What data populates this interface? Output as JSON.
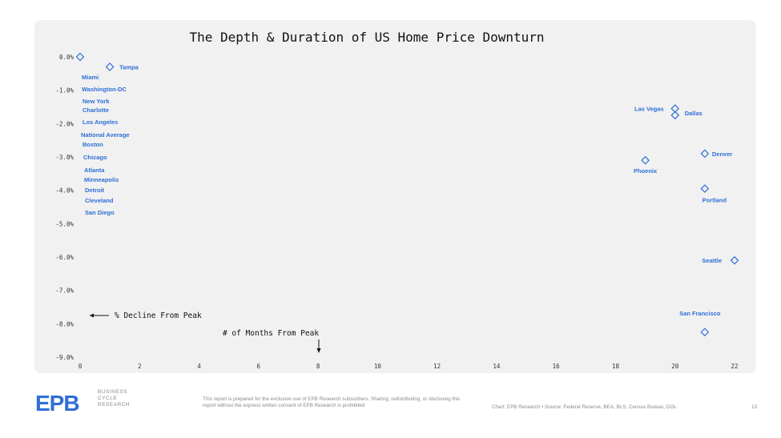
{
  "chart_data": {
    "type": "scatter",
    "title": "The Depth & Duration of US Home Price Downturn",
    "xlim": [
      0,
      22
    ],
    "ylim": [
      -9,
      0
    ],
    "x_ticks": [
      "0",
      "2",
      "4",
      "6",
      "8",
      "10",
      "12",
      "14",
      "16",
      "18",
      "20",
      "22"
    ],
    "y_ticks": [
      "0.0%",
      "-1.0%",
      "-2.0%",
      "-3.0%",
      "-4.0%",
      "-5.0%",
      "-6.0%",
      "-7.0%",
      "-8.0%",
      "-9.0%"
    ],
    "marker": "diamond",
    "color": "#2f6fd6",
    "grid": false,
    "points": [
      {
        "label": "",
        "x": 0,
        "y": 0
      },
      {
        "label": "Tampa",
        "x": 1,
        "y": -0.3
      },
      {
        "label": "Las Vegas",
        "x": 20,
        "y": -1.55
      },
      {
        "label": "Dallas",
        "x": 20,
        "y": -1.75
      },
      {
        "label": "Phoenix",
        "x": 19,
        "y": -3.1
      },
      {
        "label": "Denver",
        "x": 21,
        "y": -2.9
      },
      {
        "label": "Portland",
        "x": 21,
        "y": -3.95
      },
      {
        "label": "Seattle",
        "x": 22,
        "y": -6.1
      },
      {
        "label": "San Francisco",
        "x": 21,
        "y": -8.25
      }
    ],
    "zero_month_labels": [
      "Miami",
      "Washington-DC",
      "New York",
      "Charlotte",
      "Los Angeles",
      "National Average",
      "Boston",
      "Chicago",
      "Atlanta",
      "Minneapolis",
      "Detroit",
      "Cleveland",
      "San Diego"
    ],
    "annotations": {
      "y_axis": "% Decline From Peak",
      "x_axis": "# of Months From Peak"
    }
  },
  "footer": {
    "logo": "EPB",
    "logo_sub": [
      "BUSINESS",
      "CYCLE",
      "RESEARCH"
    ],
    "disclaimer": "This report is prepared for the exclusive use of EPB Research subscribers. Sharing, redistributing, or disclosing this report without the express written consent of EPB Research is prohibited",
    "source": "Chart: EPB Research  •  Source: Federal Reserve, BEA, BLS, Census Bureau, DOL",
    "page_number": "13"
  }
}
